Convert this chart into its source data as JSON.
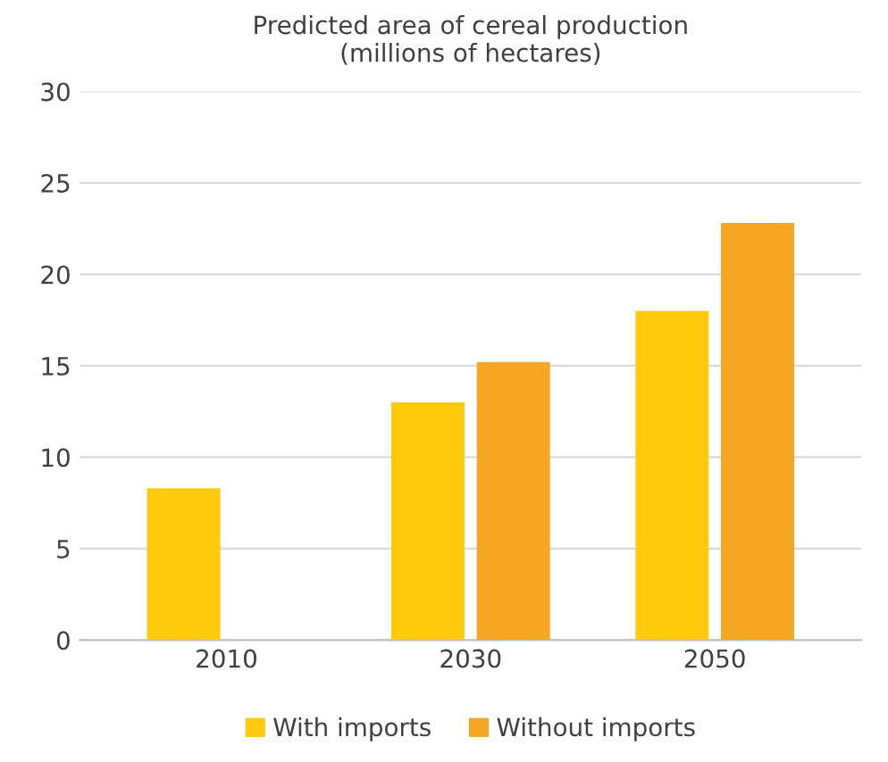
{
  "chart_data": {
    "type": "bar",
    "title": "Predicted area of cereal production\n(millions of hectares)",
    "categories": [
      "2010",
      "2030",
      "2050"
    ],
    "series": [
      {
        "name": "With imports",
        "color": "#ffc90e",
        "values": [
          8.3,
          13.0,
          18.0
        ]
      },
      {
        "name": "Without imports",
        "color": "#f5a623",
        "values": [
          null,
          15.2,
          22.8
        ]
      }
    ],
    "ylim": [
      0,
      30
    ],
    "yticks": [
      0,
      5,
      10,
      15,
      20,
      25,
      30
    ],
    "grid": "y",
    "legend": "bottom"
  }
}
